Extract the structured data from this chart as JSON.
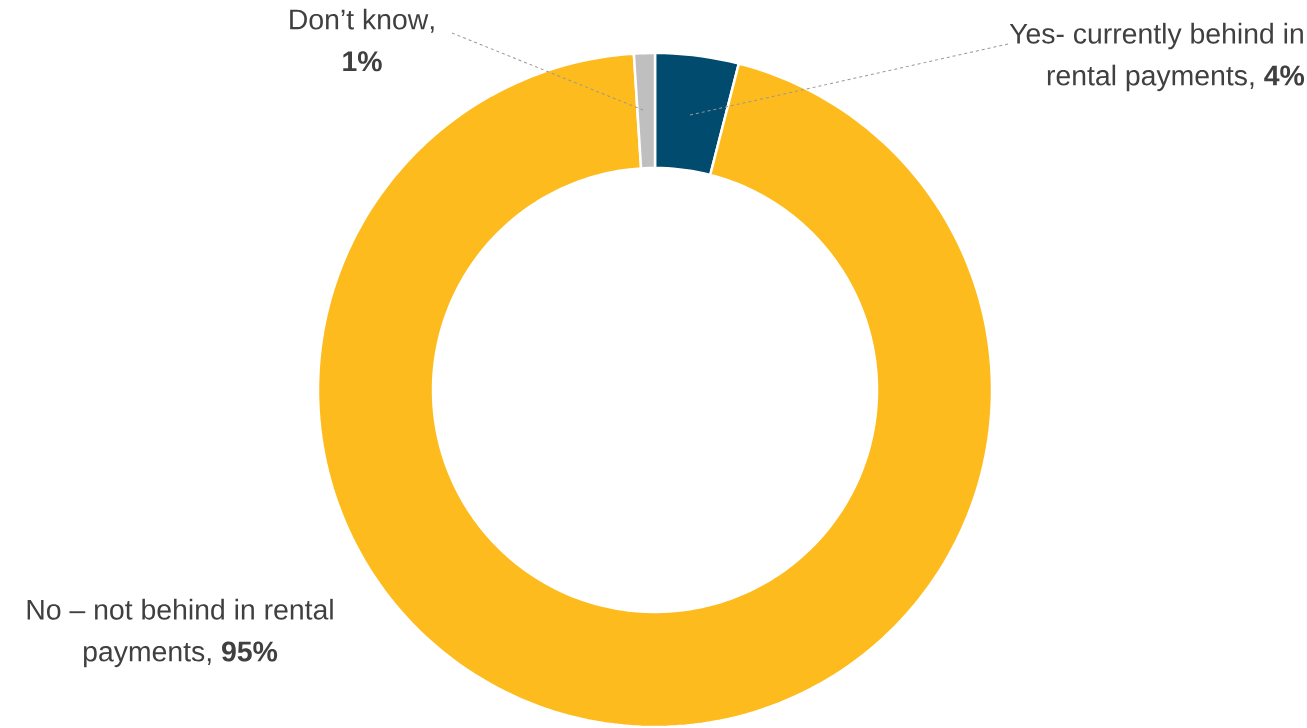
{
  "chart_data": {
    "type": "donut",
    "categories": [
      "Yes- currently behind in rental payments",
      "No – not behind in rental payments",
      "Don’t know"
    ],
    "values": [
      4,
      95,
      1
    ],
    "colors": [
      "#004b6e",
      "#fdbb1d",
      "#bfbfbf"
    ],
    "value_labels": [
      ", **4%**",
      ", **95%**",
      ", **1%**"
    ]
  }
}
